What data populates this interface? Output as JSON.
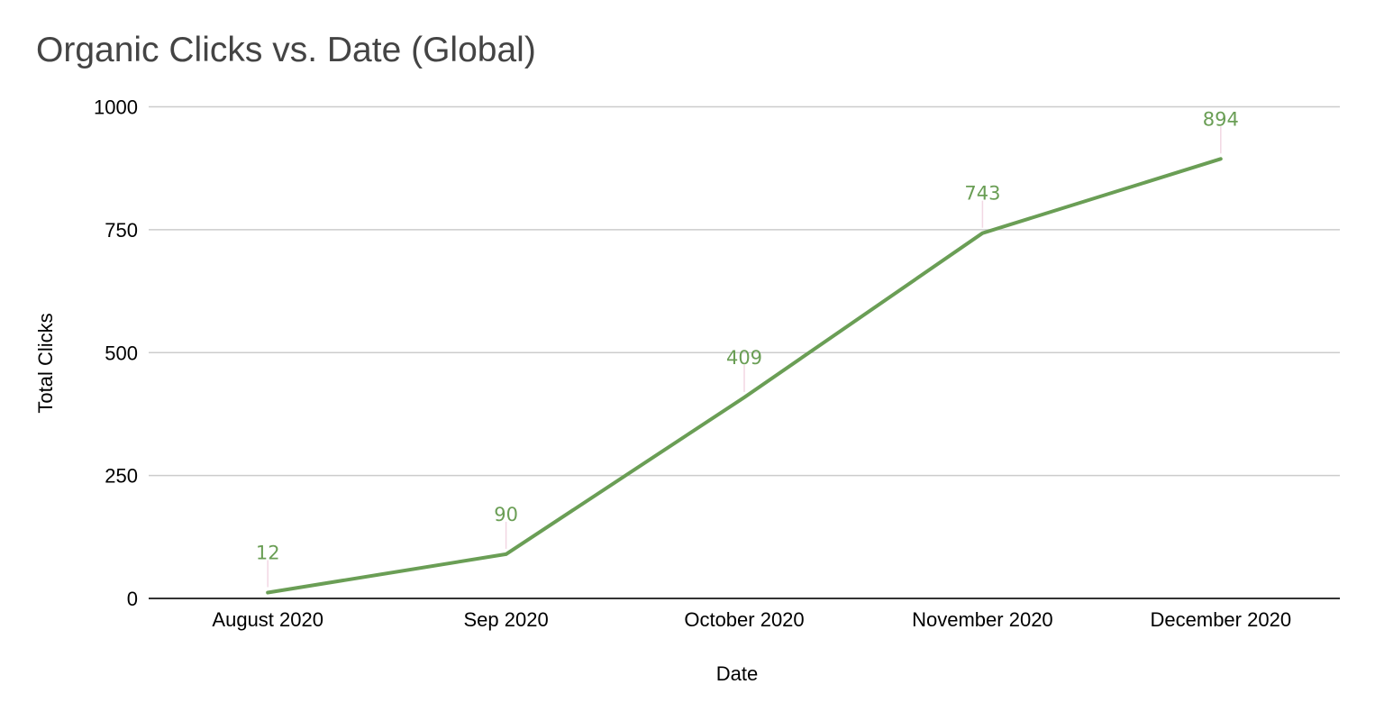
{
  "chart_data": {
    "type": "line",
    "title": "Organic Clicks vs. Date (Global)",
    "xlabel": "Date",
    "ylabel": "Total Clicks",
    "categories": [
      "August 2020",
      "Sep 2020",
      "October 2020",
      "November 2020",
      "December 2020"
    ],
    "series": [
      {
        "values": [
          12,
          90,
          409,
          743,
          894
        ],
        "data_labels": [
          "12",
          "90",
          "409",
          "743",
          "894"
        ],
        "color": "#6a9e55"
      }
    ],
    "ylim": [
      0,
      1000
    ],
    "yticks": [
      0,
      250,
      500,
      750,
      1000
    ],
    "ytick_labels": [
      "0",
      "250",
      "500",
      "750",
      "1000"
    ],
    "grid": true,
    "legend": "none",
    "colors": {
      "line": "#6a9e55",
      "grid": "#cccccc",
      "axis": "#333333",
      "title": "#444444",
      "leader": "#f2d7e3"
    }
  }
}
